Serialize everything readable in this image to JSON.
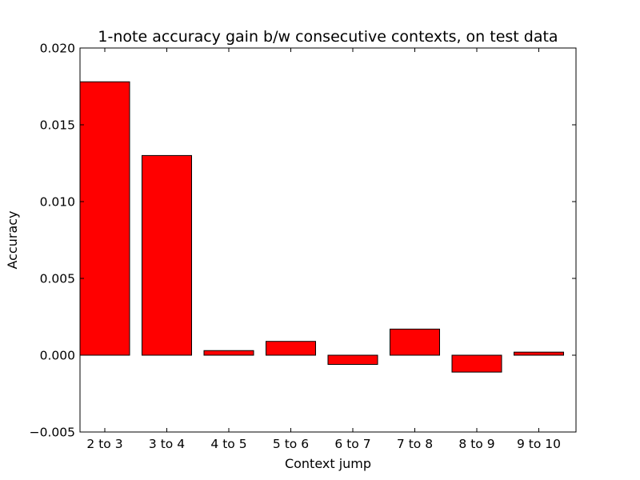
{
  "chart_data": {
    "type": "bar",
    "title": "1-note accuracy gain b/w consecutive contexts, on test data",
    "xlabel": "Context jump",
    "ylabel": "Accuracy",
    "categories": [
      "2 to 3",
      "3 to 4",
      "4 to 5",
      "5 to 6",
      "6 to 7",
      "7 to 8",
      "8 to 9",
      "9 to 10"
    ],
    "values": [
      0.0178,
      0.013,
      0.0003,
      0.0009,
      -0.0006,
      0.0017,
      -0.0011,
      0.0002
    ],
    "ylim": [
      -0.005,
      0.02
    ],
    "yticks": [
      "−0.005",
      "0.000",
      "0.005",
      "0.010",
      "0.015",
      "0.020"
    ],
    "ytick_values": [
      -0.005,
      0.0,
      0.005,
      0.01,
      0.015,
      0.02
    ],
    "grid": false,
    "legend": "none",
    "bar_color": "#ff0000",
    "edge_color": "#000000"
  }
}
